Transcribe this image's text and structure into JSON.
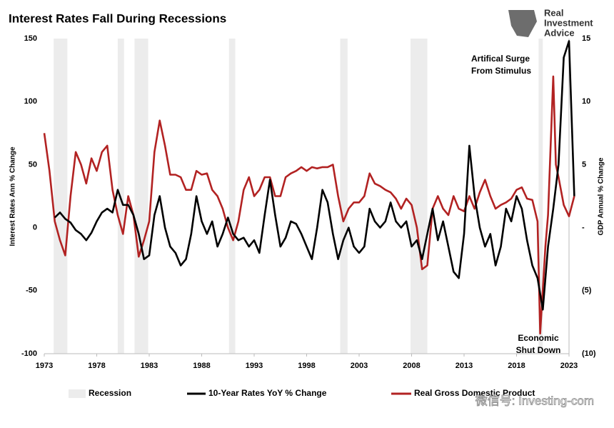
{
  "chart_data": {
    "type": "line",
    "title": "Interest Rates Fall During Recessions",
    "brand": [
      "Real",
      "Investment",
      "Advice"
    ],
    "watermark": "微信号: Investing-com",
    "ylabel": "Interest Rates Ann % Change",
    "y2label": "GDP Annual % Change",
    "xlim": [
      1973,
      2023
    ],
    "xticks": [
      1973,
      1978,
      1983,
      1988,
      1993,
      1998,
      2003,
      2008,
      2013,
      2018,
      2023
    ],
    "ylim": [
      -100,
      150
    ],
    "yticks": [
      150,
      100,
      50,
      0,
      -50,
      -100
    ],
    "y2lim": [
      -10,
      15
    ],
    "y2ticks": [
      15,
      10,
      5,
      {
        "value": 0,
        "label": "-"
      },
      {
        "value": -5,
        "label": "(5)"
      },
      {
        "value": -10,
        "label": "(10)"
      }
    ],
    "recession_name": "Recession",
    "recession_color": "#ececec",
    "recessions": [
      [
        1973.9,
        1975.2
      ],
      [
        1980.0,
        1980.6
      ],
      [
        1981.6,
        1982.9
      ],
      [
        1990.6,
        1991.2
      ],
      [
        2001.2,
        2001.9
      ],
      [
        2007.9,
        2009.5
      ],
      [
        2020.1,
        2020.5
      ]
    ],
    "annotations": [
      [
        "Artifical Surge",
        "From Stimulus"
      ],
      [
        "Economic",
        "Shut Down"
      ]
    ],
    "series": [
      {
        "name": "10-Year Rates YoY % Change",
        "color": "#000000",
        "axis": "y",
        "x": [
          1974.0,
          1974.5,
          1975.0,
          1975.5,
          1976.0,
          1976.5,
          1977.0,
          1977.5,
          1978.0,
          1978.5,
          1979.0,
          1979.5,
          1980.0,
          1980.5,
          1981.0,
          1981.5,
          1982.0,
          1982.5,
          1983.0,
          1983.5,
          1984.0,
          1984.5,
          1985.0,
          1985.5,
          1986.0,
          1986.5,
          1987.0,
          1987.5,
          1988.0,
          1988.5,
          1989.0,
          1989.5,
          1990.0,
          1990.5,
          1991.0,
          1991.5,
          1992.0,
          1992.5,
          1993.0,
          1993.5,
          1994.0,
          1994.5,
          1995.0,
          1995.5,
          1996.0,
          1996.5,
          1997.0,
          1997.5,
          1998.0,
          1998.5,
          1999.0,
          1999.5,
          2000.0,
          2000.5,
          2001.0,
          2001.5,
          2002.0,
          2002.5,
          2003.0,
          2003.5,
          2004.0,
          2004.5,
          2005.0,
          2005.5,
          2006.0,
          2006.5,
          2007.0,
          2007.5,
          2008.0,
          2008.5,
          2009.0,
          2009.5,
          2010.0,
          2010.5,
          2011.0,
          2011.5,
          2012.0,
          2012.5,
          2013.0,
          2013.5,
          2014.0,
          2014.5,
          2015.0,
          2015.5,
          2016.0,
          2016.5,
          2017.0,
          2017.5,
          2018.0,
          2018.5,
          2019.0,
          2019.5,
          2020.0,
          2020.5,
          2021.0,
          2021.5,
          2022.0,
          2022.5,
          2023.0,
          2023.5
        ],
        "values": [
          8,
          12,
          7,
          4,
          -2,
          -5,
          -10,
          -4,
          5,
          12,
          15,
          12,
          30,
          18,
          18,
          10,
          -5,
          -25,
          -22,
          10,
          25,
          0,
          -15,
          -20,
          -30,
          -25,
          -5,
          25,
          5,
          -5,
          5,
          -15,
          -5,
          8,
          -5,
          -10,
          -8,
          -15,
          -10,
          -20,
          10,
          38,
          10,
          -15,
          -8,
          5,
          3,
          -5,
          -15,
          -25,
          0,
          30,
          20,
          -5,
          -25,
          -10,
          0,
          -15,
          -20,
          -15,
          15,
          5,
          0,
          5,
          20,
          5,
          0,
          5,
          -15,
          -10,
          -25,
          -5,
          15,
          -10,
          5,
          -15,
          -35,
          -40,
          -5,
          65,
          25,
          0,
          -15,
          -5,
          -30,
          -15,
          15,
          5,
          25,
          15,
          -10,
          -30,
          -40,
          -65,
          -15,
          15,
          50,
          135,
          148,
          25
        ]
      },
      {
        "name": "Real Gross Domestic Product",
        "color": "#b22222",
        "axis": "y2",
        "x": [
          1973.0,
          1973.5,
          1974.0,
          1974.5,
          1975.0,
          1975.5,
          1976.0,
          1976.5,
          1977.0,
          1977.5,
          1978.0,
          1978.5,
          1979.0,
          1979.5,
          1980.0,
          1980.5,
          1981.0,
          1981.5,
          1982.0,
          1982.5,
          1983.0,
          1983.5,
          1984.0,
          1984.5,
          1985.0,
          1985.5,
          1986.0,
          1986.5,
          1987.0,
          1987.5,
          1988.0,
          1988.5,
          1989.0,
          1989.5,
          1990.0,
          1990.5,
          1991.0,
          1991.5,
          1992.0,
          1992.5,
          1993.0,
          1993.5,
          1994.0,
          1994.5,
          1995.0,
          1995.5,
          1996.0,
          1996.5,
          1997.0,
          1997.5,
          1998.0,
          1998.5,
          1999.0,
          1999.5,
          2000.0,
          2000.5,
          2001.0,
          2001.5,
          2002.0,
          2002.5,
          2003.0,
          2003.5,
          2004.0,
          2004.5,
          2005.0,
          2005.5,
          2006.0,
          2006.5,
          2007.0,
          2007.5,
          2008.0,
          2008.5,
          2009.0,
          2009.5,
          2010.0,
          2010.5,
          2011.0,
          2011.5,
          2012.0,
          2012.5,
          2013.0,
          2013.5,
          2014.0,
          2014.5,
          2015.0,
          2015.5,
          2016.0,
          2016.5,
          2017.0,
          2017.5,
          2018.0,
          2018.5,
          2019.0,
          2019.5,
          2020.0,
          2020.25,
          2020.75,
          2021.0,
          2021.5,
          2021.75,
          2022.0,
          2022.5,
          2023.0,
          2023.5
        ],
        "values": [
          7.5,
          4.5,
          0.5,
          -1,
          -2.2,
          2.5,
          6,
          5,
          3.5,
          5.5,
          4.5,
          6,
          6.5,
          3,
          1,
          -0.5,
          2.5,
          1,
          -2.3,
          -1,
          0.5,
          6,
          8.5,
          6.5,
          4.2,
          4.2,
          4,
          3,
          3,
          4.5,
          4.2,
          4.3,
          3,
          2.5,
          1.5,
          0,
          -1,
          0.5,
          3,
          4,
          2.5,
          3,
          4,
          4,
          2.5,
          2.5,
          4,
          4.3,
          4.5,
          4.8,
          4.5,
          4.8,
          4.7,
          4.8,
          4.8,
          5,
          2.5,
          0.5,
          1.5,
          2,
          2,
          2.5,
          4.3,
          3.5,
          3.3,
          3,
          2.8,
          2.3,
          1.5,
          2.3,
          1.8,
          0,
          -3.3,
          -3,
          1.5,
          2.5,
          1.5,
          1,
          2.5,
          1.5,
          1.3,
          2.5,
          1.5,
          2.8,
          3.8,
          2.5,
          1.5,
          1.8,
          2,
          2.3,
          3,
          3.2,
          2.3,
          2.2,
          0.5,
          -8.4,
          -1.5,
          1,
          12,
          5,
          4,
          1.8,
          0.9,
          2.5
        ]
      }
    ]
  }
}
